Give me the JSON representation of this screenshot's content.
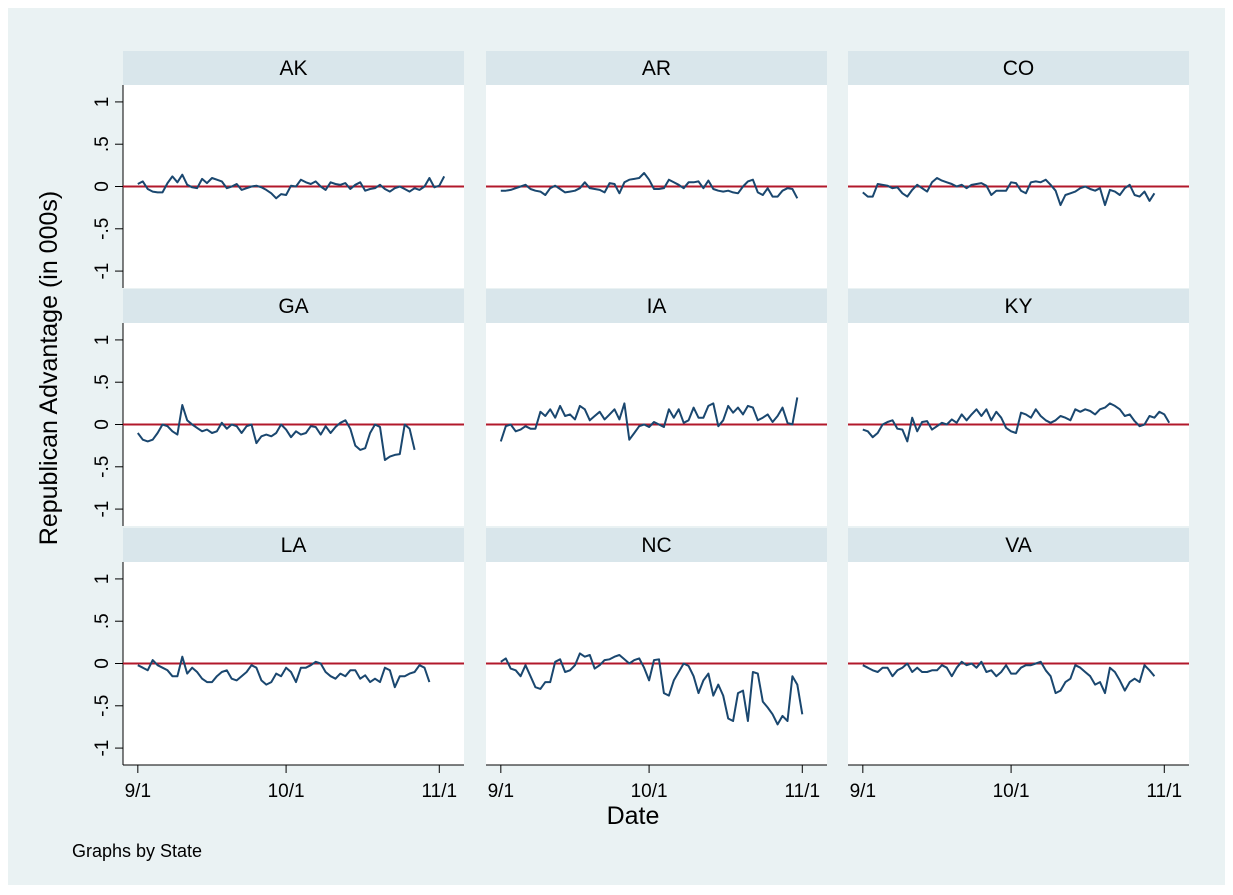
{
  "chart_data": {
    "type": "line",
    "layout": "facet-grid-3x3",
    "xlabel": "Date",
    "ylabel": "Republican Advantage (in 000s)",
    "note": "Graphs by State",
    "yticks": [
      {
        "value": 1,
        "label": "1"
      },
      {
        "value": 0.5,
        "label": ".5"
      },
      {
        "value": 0,
        "label": "0"
      },
      {
        "value": -0.5,
        "label": "-.5"
      },
      {
        "value": -1,
        "label": "-1"
      }
    ],
    "ylim": [
      -1.2,
      1.2
    ],
    "xticks": [
      {
        "value": 0,
        "label": "9/1"
      },
      {
        "value": 30,
        "label": "10/1"
      },
      {
        "value": 61,
        "label": "11/1"
      }
    ],
    "x_units": "day offset from 9/1",
    "xlim": [
      -3,
      66
    ],
    "reference_line": {
      "y": 0,
      "color": "#b2182b"
    },
    "line_color": "#1a476f",
    "panels": [
      {
        "state": "AK",
        "values": [
          0.03,
          0.06,
          -0.03,
          -0.06,
          -0.07,
          -0.07,
          0.04,
          0.12,
          0.05,
          0.14,
          0.02,
          -0.01,
          -0.02,
          0.09,
          0.04,
          0.1,
          0.08,
          0.06,
          -0.02,
          0.0,
          0.03,
          -0.04,
          -0.02,
          0.0,
          0.01,
          -0.01,
          -0.04,
          -0.08,
          -0.14,
          -0.09,
          -0.1,
          0.01,
          0.0,
          0.08,
          0.05,
          0.03,
          0.06,
          0.0,
          -0.04,
          0.05,
          0.03,
          0.02,
          0.04,
          -0.03,
          0.02,
          0.05,
          -0.05,
          -0.03,
          -0.02,
          0.02,
          -0.03,
          -0.06,
          -0.02,
          0.0,
          -0.03,
          -0.06,
          -0.02,
          -0.04,
          0.0,
          0.1,
          -0.01,
          0.01,
          0.12
        ]
      },
      {
        "state": "AR",
        "values": [
          -0.05,
          -0.05,
          -0.04,
          -0.02,
          0.0,
          0.02,
          -0.03,
          -0.05,
          -0.06,
          -0.1,
          -0.02,
          0.01,
          -0.03,
          -0.07,
          -0.06,
          -0.05,
          -0.02,
          0.05,
          -0.02,
          -0.03,
          -0.04,
          -0.07,
          0.04,
          0.03,
          -0.08,
          0.05,
          0.08,
          0.09,
          0.1,
          0.16,
          0.08,
          -0.03,
          -0.03,
          -0.02,
          0.08,
          0.05,
          0.02,
          -0.02,
          0.05,
          0.05,
          0.06,
          -0.02,
          0.07,
          -0.03,
          -0.05,
          -0.06,
          -0.05,
          -0.07,
          -0.08,
          0.0,
          0.06,
          0.08,
          -0.07,
          -0.1,
          -0.02,
          -0.12,
          -0.12,
          -0.05,
          -0.02,
          -0.03,
          -0.14
        ]
      },
      {
        "state": "CO",
        "values": [
          -0.07,
          -0.12,
          -0.12,
          0.03,
          0.02,
          0.01,
          -0.02,
          -0.01,
          -0.08,
          -0.12,
          -0.04,
          0.02,
          -0.02,
          -0.06,
          0.05,
          0.1,
          0.07,
          0.05,
          0.03,
          0.0,
          0.02,
          -0.02,
          0.02,
          0.03,
          0.04,
          0.01,
          -0.1,
          -0.05,
          -0.05,
          -0.05,
          0.05,
          0.04,
          -0.05,
          -0.08,
          0.05,
          0.06,
          0.05,
          0.08,
          0.02,
          -0.05,
          -0.22,
          -0.1,
          -0.08,
          -0.06,
          -0.02,
          0.0,
          -0.03,
          -0.05,
          -0.02,
          -0.22,
          -0.04,
          -0.06,
          -0.1,
          -0.02,
          0.02,
          -0.1,
          -0.12,
          -0.06,
          -0.17,
          -0.08
        ]
      },
      {
        "state": "GA",
        "values": [
          -0.1,
          -0.18,
          -0.2,
          -0.18,
          -0.1,
          0.0,
          -0.02,
          -0.08,
          -0.12,
          0.23,
          0.05,
          0.0,
          -0.04,
          -0.08,
          -0.06,
          -0.1,
          -0.08,
          0.02,
          -0.05,
          0.0,
          -0.02,
          -0.1,
          -0.02,
          0.0,
          -0.22,
          -0.14,
          -0.12,
          -0.14,
          -0.1,
          0.0,
          -0.06,
          -0.15,
          -0.08,
          -0.12,
          -0.1,
          -0.02,
          -0.03,
          -0.12,
          -0.02,
          -0.1,
          -0.03,
          0.02,
          0.05,
          -0.05,
          -0.25,
          -0.3,
          -0.28,
          -0.1,
          0.0,
          -0.03,
          -0.42,
          -0.38,
          -0.36,
          -0.35,
          0.0,
          -0.05,
          -0.3
        ]
      },
      {
        "state": "IA",
        "values": [
          -0.2,
          -0.02,
          0.0,
          -0.08,
          -0.06,
          -0.02,
          -0.05,
          -0.05,
          0.15,
          0.1,
          0.18,
          0.08,
          0.22,
          0.1,
          0.12,
          0.06,
          0.22,
          0.18,
          0.05,
          0.1,
          0.15,
          0.06,
          0.12,
          0.18,
          0.06,
          0.25,
          -0.18,
          -0.1,
          -0.02,
          0.0,
          -0.03,
          0.03,
          0.0,
          -0.03,
          0.18,
          0.08,
          0.18,
          0.02,
          0.05,
          0.2,
          0.08,
          0.08,
          0.22,
          0.25,
          -0.02,
          0.05,
          0.22,
          0.14,
          0.2,
          0.12,
          0.22,
          0.2,
          0.05,
          0.08,
          0.12,
          0.03,
          0.1,
          0.2,
          0.02,
          0.0,
          0.32
        ]
      },
      {
        "state": "KY",
        "values": [
          -0.06,
          -0.08,
          -0.15,
          -0.1,
          0.0,
          0.03,
          0.05,
          -0.05,
          -0.06,
          -0.2,
          0.08,
          -0.08,
          0.03,
          0.04,
          -0.06,
          -0.02,
          0.02,
          0.0,
          0.06,
          0.02,
          0.12,
          0.05,
          0.12,
          0.18,
          0.1,
          0.18,
          0.05,
          0.15,
          0.08,
          -0.04,
          -0.08,
          -0.1,
          0.14,
          0.12,
          0.08,
          0.18,
          0.1,
          0.05,
          0.02,
          0.05,
          0.1,
          0.08,
          0.05,
          0.18,
          0.15,
          0.18,
          0.16,
          0.12,
          0.18,
          0.2,
          0.25,
          0.22,
          0.18,
          0.1,
          0.12,
          0.04,
          -0.02,
          0.0,
          0.1,
          0.08,
          0.15,
          0.12,
          0.02
        ]
      },
      {
        "state": "LA",
        "values": [
          -0.02,
          -0.05,
          -0.08,
          0.04,
          -0.02,
          -0.05,
          -0.08,
          -0.15,
          -0.15,
          0.08,
          -0.12,
          -0.05,
          -0.1,
          -0.18,
          -0.22,
          -0.22,
          -0.15,
          -0.1,
          -0.08,
          -0.18,
          -0.2,
          -0.15,
          -0.1,
          -0.02,
          -0.05,
          -0.2,
          -0.25,
          -0.22,
          -0.12,
          -0.15,
          -0.05,
          -0.1,
          -0.22,
          -0.05,
          -0.05,
          -0.02,
          0.02,
          0.0,
          -0.1,
          -0.15,
          -0.18,
          -0.12,
          -0.15,
          -0.08,
          -0.08,
          -0.18,
          -0.14,
          -0.22,
          -0.18,
          -0.22,
          -0.05,
          -0.08,
          -0.28,
          -0.15,
          -0.15,
          -0.12,
          -0.1,
          -0.02,
          -0.05,
          -0.22
        ]
      },
      {
        "state": "NC",
        "values": [
          0.02,
          0.06,
          -0.06,
          -0.08,
          -0.15,
          -0.02,
          -0.15,
          -0.28,
          -0.3,
          -0.22,
          -0.22,
          0.02,
          0.05,
          -0.1,
          -0.08,
          -0.02,
          0.12,
          0.08,
          0.1,
          -0.06,
          -0.02,
          0.04,
          0.05,
          0.08,
          0.1,
          0.05,
          0.0,
          0.04,
          0.06,
          -0.05,
          -0.2,
          0.04,
          0.05,
          -0.35,
          -0.38,
          -0.2,
          -0.1,
          0.0,
          -0.03,
          -0.15,
          -0.35,
          -0.2,
          -0.12,
          -0.38,
          -0.25,
          -0.38,
          -0.65,
          -0.68,
          -0.35,
          -0.32,
          -0.68,
          -0.1,
          -0.12,
          -0.45,
          -0.52,
          -0.6,
          -0.72,
          -0.62,
          -0.68,
          -0.15,
          -0.25,
          -0.6
        ]
      },
      {
        "state": "VA",
        "values": [
          -0.02,
          -0.05,
          -0.08,
          -0.1,
          -0.05,
          -0.05,
          -0.15,
          -0.08,
          -0.05,
          0.0,
          -0.1,
          -0.05,
          -0.1,
          -0.1,
          -0.08,
          -0.08,
          -0.02,
          -0.05,
          -0.15,
          -0.05,
          0.02,
          -0.02,
          0.0,
          -0.05,
          0.02,
          -0.1,
          -0.08,
          -0.15,
          -0.1,
          -0.02,
          -0.12,
          -0.12,
          -0.05,
          -0.02,
          -0.02,
          0.0,
          0.02,
          -0.08,
          -0.15,
          -0.35,
          -0.32,
          -0.22,
          -0.18,
          -0.02,
          -0.05,
          -0.1,
          -0.15,
          -0.25,
          -0.22,
          -0.35,
          -0.05,
          -0.1,
          -0.2,
          -0.32,
          -0.22,
          -0.18,
          -0.22,
          -0.02,
          -0.08,
          -0.15
        ]
      }
    ]
  }
}
